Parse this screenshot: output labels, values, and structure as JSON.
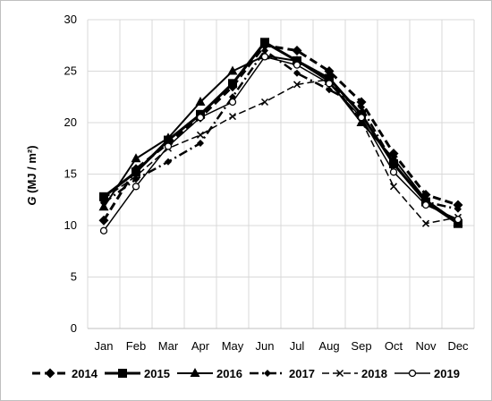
{
  "chart_data": {
    "type": "line",
    "title": "",
    "ylabel_italic": "G",
    "ylabel_rest": " (MJ / m²)",
    "xlabel": "",
    "categories": [
      "Jan",
      "Feb",
      "Mar",
      "Apr",
      "May",
      "Jun",
      "Jul",
      "Aug",
      "Sep",
      "Oct",
      "Nov",
      "Dec"
    ],
    "ylim": [
      0,
      30
    ],
    "yticks": [
      0,
      5,
      10,
      15,
      20,
      25,
      30
    ],
    "grid": "vertical and horizontal gridlines",
    "legend_position": "bottom",
    "series": [
      {
        "name": "2014",
        "values": [
          10.5,
          15.5,
          18.0,
          20.5,
          23.5,
          27.5,
          27.0,
          25.0,
          22.0,
          17.0,
          13.0,
          12.0
        ],
        "color": "#000000",
        "dash": "9,5",
        "marker": "diamond",
        "width": 3
      },
      {
        "name": "2015",
        "values": [
          12.8,
          15.2,
          18.3,
          20.8,
          23.8,
          27.8,
          26.0,
          24.3,
          20.8,
          16.0,
          12.3,
          10.2
        ],
        "color": "#000000",
        "dash": "",
        "marker": "square",
        "width": 3
      },
      {
        "name": "2016",
        "values": [
          11.8,
          16.5,
          18.5,
          22.0,
          25.0,
          26.5,
          26.0,
          24.0,
          20.0,
          16.5,
          12.5,
          10.3
        ],
        "color": "#000000",
        "dash": "",
        "marker": "triangle",
        "width": 2
      },
      {
        "name": "2017",
        "values": [
          12.2,
          14.5,
          16.2,
          18.0,
          22.5,
          27.0,
          24.8,
          23.2,
          21.5,
          16.0,
          12.3,
          11.6
        ],
        "color": "#000000",
        "dash": "10,4,2,4",
        "marker": "diamond-small",
        "width": 2.5
      },
      {
        "name": "2018",
        "values": [
          12.6,
          14.8,
          17.5,
          18.8,
          20.6,
          22.0,
          23.7,
          24.2,
          20.2,
          13.8,
          10.2,
          10.8
        ],
        "color": "#000000",
        "dash": "8,4",
        "marker": "cross",
        "width": 1.5
      },
      {
        "name": "2019",
        "values": [
          9.5,
          13.8,
          17.7,
          20.5,
          22.0,
          26.4,
          25.6,
          23.8,
          20.5,
          15.2,
          12.0,
          10.6
        ],
        "color": "#000000",
        "dash": "",
        "marker": "circle",
        "width": 1.5
      }
    ]
  }
}
